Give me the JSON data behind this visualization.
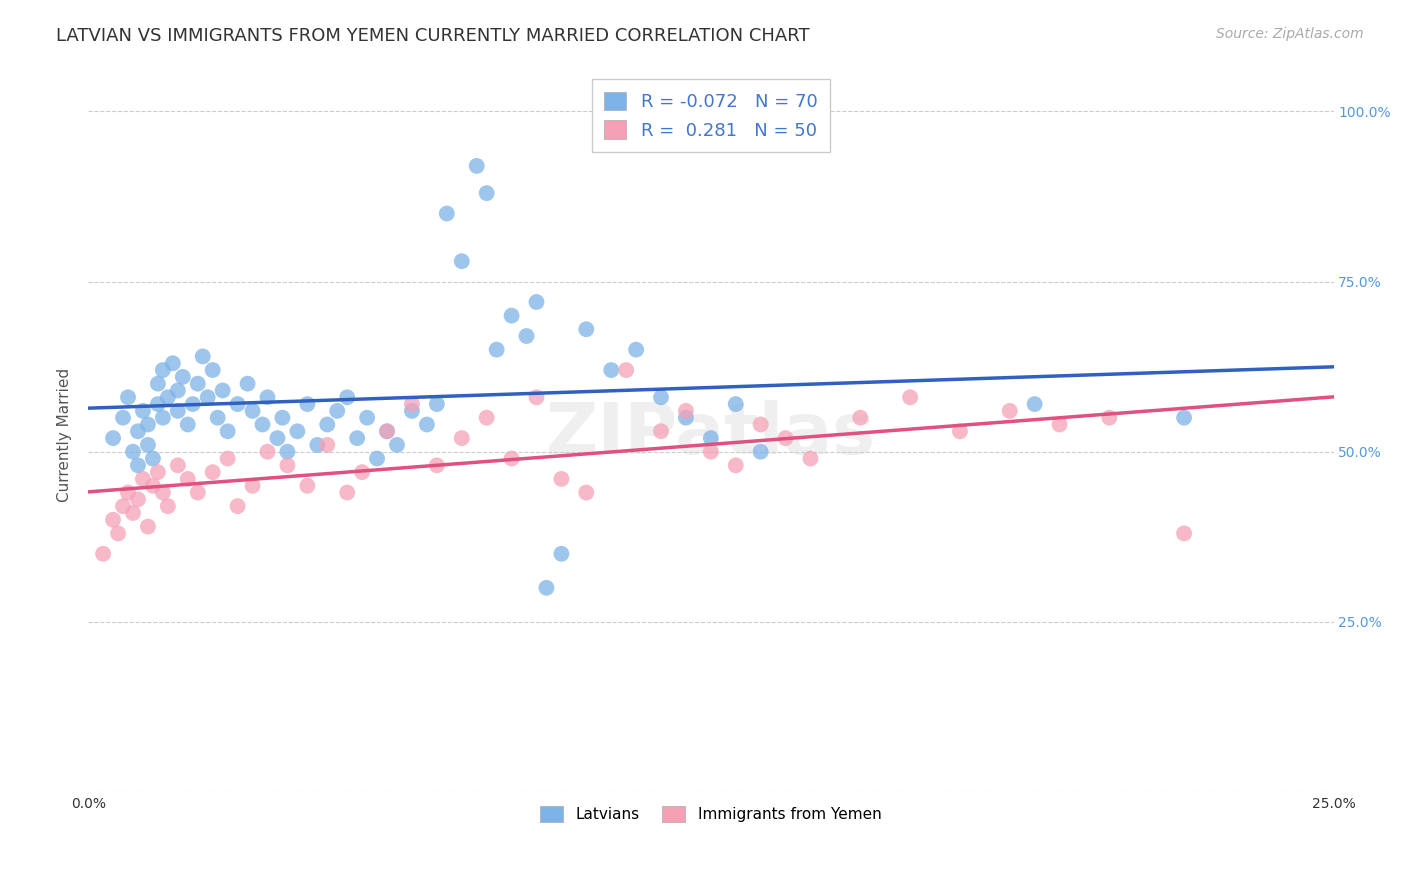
{
  "title": "LATVIAN VS IMMIGRANTS FROM YEMEN CURRENTLY MARRIED CORRELATION CHART",
  "source": "Source: ZipAtlas.com",
  "ylabel": "Currently Married",
  "xlim": [
    0.0,
    0.25
  ],
  "ylim": [
    0.0,
    1.05
  ],
  "yticks": [
    0.0,
    0.25,
    0.5,
    0.75,
    1.0
  ],
  "ytick_labels": [
    "",
    "25.0%",
    "50.0%",
    "75.0%",
    "100.0%"
  ],
  "xticks": [
    0.0,
    0.05,
    0.1,
    0.15,
    0.2,
    0.25
  ],
  "xtick_labels": [
    "0.0%",
    "",
    "",
    "",
    "",
    "25.0%"
  ],
  "blue_color": "#7EB3E8",
  "pink_color": "#F5A0B5",
  "blue_line_color": "#3060C0",
  "pink_line_color": "#E05080",
  "background_color": "#FFFFFF",
  "grid_color": "#CCCCCC",
  "title_fontsize": 13,
  "source_fontsize": 10,
  "axis_label_fontsize": 11,
  "tick_fontsize": 10,
  "legend_fontsize": 13,
  "watermark": "ZIPatlas",
  "blue_label_r": "R = -0.072",
  "blue_label_n": "N = 70",
  "pink_label_r": "R =  0.281",
  "pink_label_n": "N = 50",
  "bottom_label_blue": "Latvians",
  "bottom_label_pink": "Immigrants from Yemen",
  "blue_dots_x": [
    0.005,
    0.007,
    0.008,
    0.009,
    0.01,
    0.01,
    0.011,
    0.012,
    0.012,
    0.013,
    0.014,
    0.014,
    0.015,
    0.015,
    0.016,
    0.017,
    0.018,
    0.018,
    0.019,
    0.02,
    0.021,
    0.022,
    0.023,
    0.024,
    0.025,
    0.026,
    0.027,
    0.028,
    0.03,
    0.032,
    0.033,
    0.035,
    0.036,
    0.038,
    0.039,
    0.04,
    0.042,
    0.044,
    0.046,
    0.048,
    0.05,
    0.052,
    0.054,
    0.056,
    0.058,
    0.06,
    0.062,
    0.065,
    0.068,
    0.07,
    0.072,
    0.075,
    0.078,
    0.08,
    0.082,
    0.085,
    0.088,
    0.09,
    0.092,
    0.095,
    0.1,
    0.105,
    0.11,
    0.115,
    0.12,
    0.125,
    0.13,
    0.135,
    0.19,
    0.22
  ],
  "blue_dots_y": [
    0.52,
    0.55,
    0.58,
    0.5,
    0.53,
    0.48,
    0.56,
    0.51,
    0.54,
    0.49,
    0.6,
    0.57,
    0.62,
    0.55,
    0.58,
    0.63,
    0.59,
    0.56,
    0.61,
    0.54,
    0.57,
    0.6,
    0.64,
    0.58,
    0.62,
    0.55,
    0.59,
    0.53,
    0.57,
    0.6,
    0.56,
    0.54,
    0.58,
    0.52,
    0.55,
    0.5,
    0.53,
    0.57,
    0.51,
    0.54,
    0.56,
    0.58,
    0.52,
    0.55,
    0.49,
    0.53,
    0.51,
    0.56,
    0.54,
    0.57,
    0.85,
    0.78,
    0.92,
    0.88,
    0.65,
    0.7,
    0.67,
    0.72,
    0.3,
    0.35,
    0.68,
    0.62,
    0.65,
    0.58,
    0.55,
    0.52,
    0.57,
    0.5,
    0.57,
    0.55
  ],
  "pink_dots_x": [
    0.003,
    0.005,
    0.006,
    0.007,
    0.008,
    0.009,
    0.01,
    0.011,
    0.012,
    0.013,
    0.014,
    0.015,
    0.016,
    0.018,
    0.02,
    0.022,
    0.025,
    0.028,
    0.03,
    0.033,
    0.036,
    0.04,
    0.044,
    0.048,
    0.052,
    0.055,
    0.06,
    0.065,
    0.07,
    0.075,
    0.08,
    0.085,
    0.09,
    0.095,
    0.1,
    0.108,
    0.115,
    0.12,
    0.125,
    0.13,
    0.135,
    0.14,
    0.145,
    0.155,
    0.165,
    0.175,
    0.185,
    0.195,
    0.205,
    0.22
  ],
  "pink_dots_y": [
    0.35,
    0.4,
    0.38,
    0.42,
    0.44,
    0.41,
    0.43,
    0.46,
    0.39,
    0.45,
    0.47,
    0.44,
    0.42,
    0.48,
    0.46,
    0.44,
    0.47,
    0.49,
    0.42,
    0.45,
    0.5,
    0.48,
    0.45,
    0.51,
    0.44,
    0.47,
    0.53,
    0.57,
    0.48,
    0.52,
    0.55,
    0.49,
    0.58,
    0.46,
    0.44,
    0.62,
    0.53,
    0.56,
    0.5,
    0.48,
    0.54,
    0.52,
    0.49,
    0.55,
    0.58,
    0.53,
    0.56,
    0.54,
    0.55,
    0.38
  ]
}
